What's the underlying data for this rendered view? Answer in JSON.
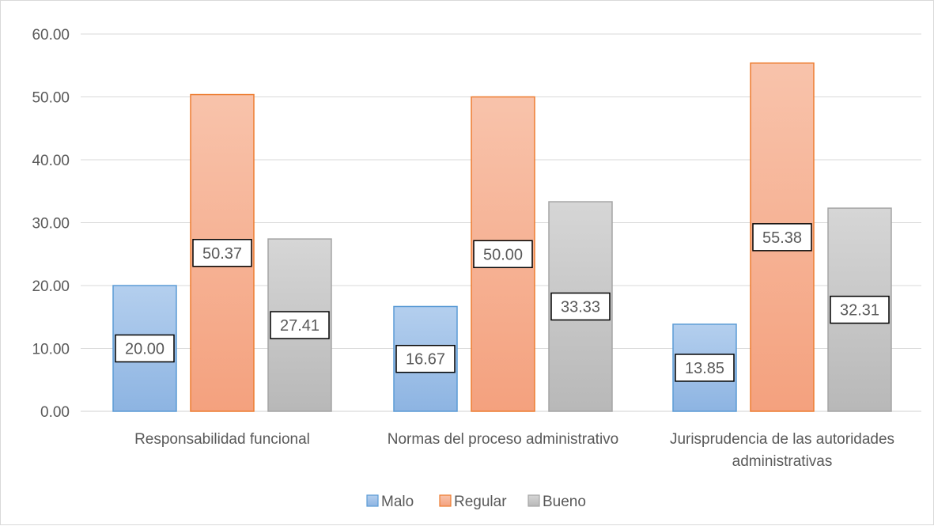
{
  "chart_data": {
    "type": "bar",
    "categories": [
      [
        "Responsabilidad funcional"
      ],
      [
        "Normas del proceso administrativo"
      ],
      [
        "Jurisprudencia de las autoridades",
        "administrativas"
      ]
    ],
    "series": [
      {
        "name": "Malo",
        "values": [
          20.0,
          16.67,
          13.85
        ],
        "fill_top": "#b4cfee",
        "fill_bottom": "#8db4e2",
        "stroke": "#5b9bd5"
      },
      {
        "name": "Regular",
        "values": [
          50.37,
          50.0,
          55.38
        ],
        "fill_top": "#f8c3ab",
        "fill_bottom": "#f4a17e",
        "stroke": "#ed7d31"
      },
      {
        "name": "Bueno",
        "values": [
          27.41,
          33.33,
          32.31
        ],
        "fill_top": "#d6d6d6",
        "fill_bottom": "#b8b8b8",
        "stroke": "#a5a5a5"
      }
    ],
    "data_labels": [
      [
        "20.00",
        "16.67",
        "13.85"
      ],
      [
        "50.37",
        "50.00",
        "55.38"
      ],
      [
        "27.41",
        "33.33",
        "32.31"
      ]
    ],
    "y_ticks": [
      "0.00",
      "10.00",
      "20.00",
      "30.00",
      "40.00",
      "50.00",
      "60.00"
    ],
    "ylim": [
      0,
      60
    ],
    "grid": true,
    "legend_position": "bottom",
    "title": "",
    "xlabel": "",
    "ylabel": ""
  }
}
